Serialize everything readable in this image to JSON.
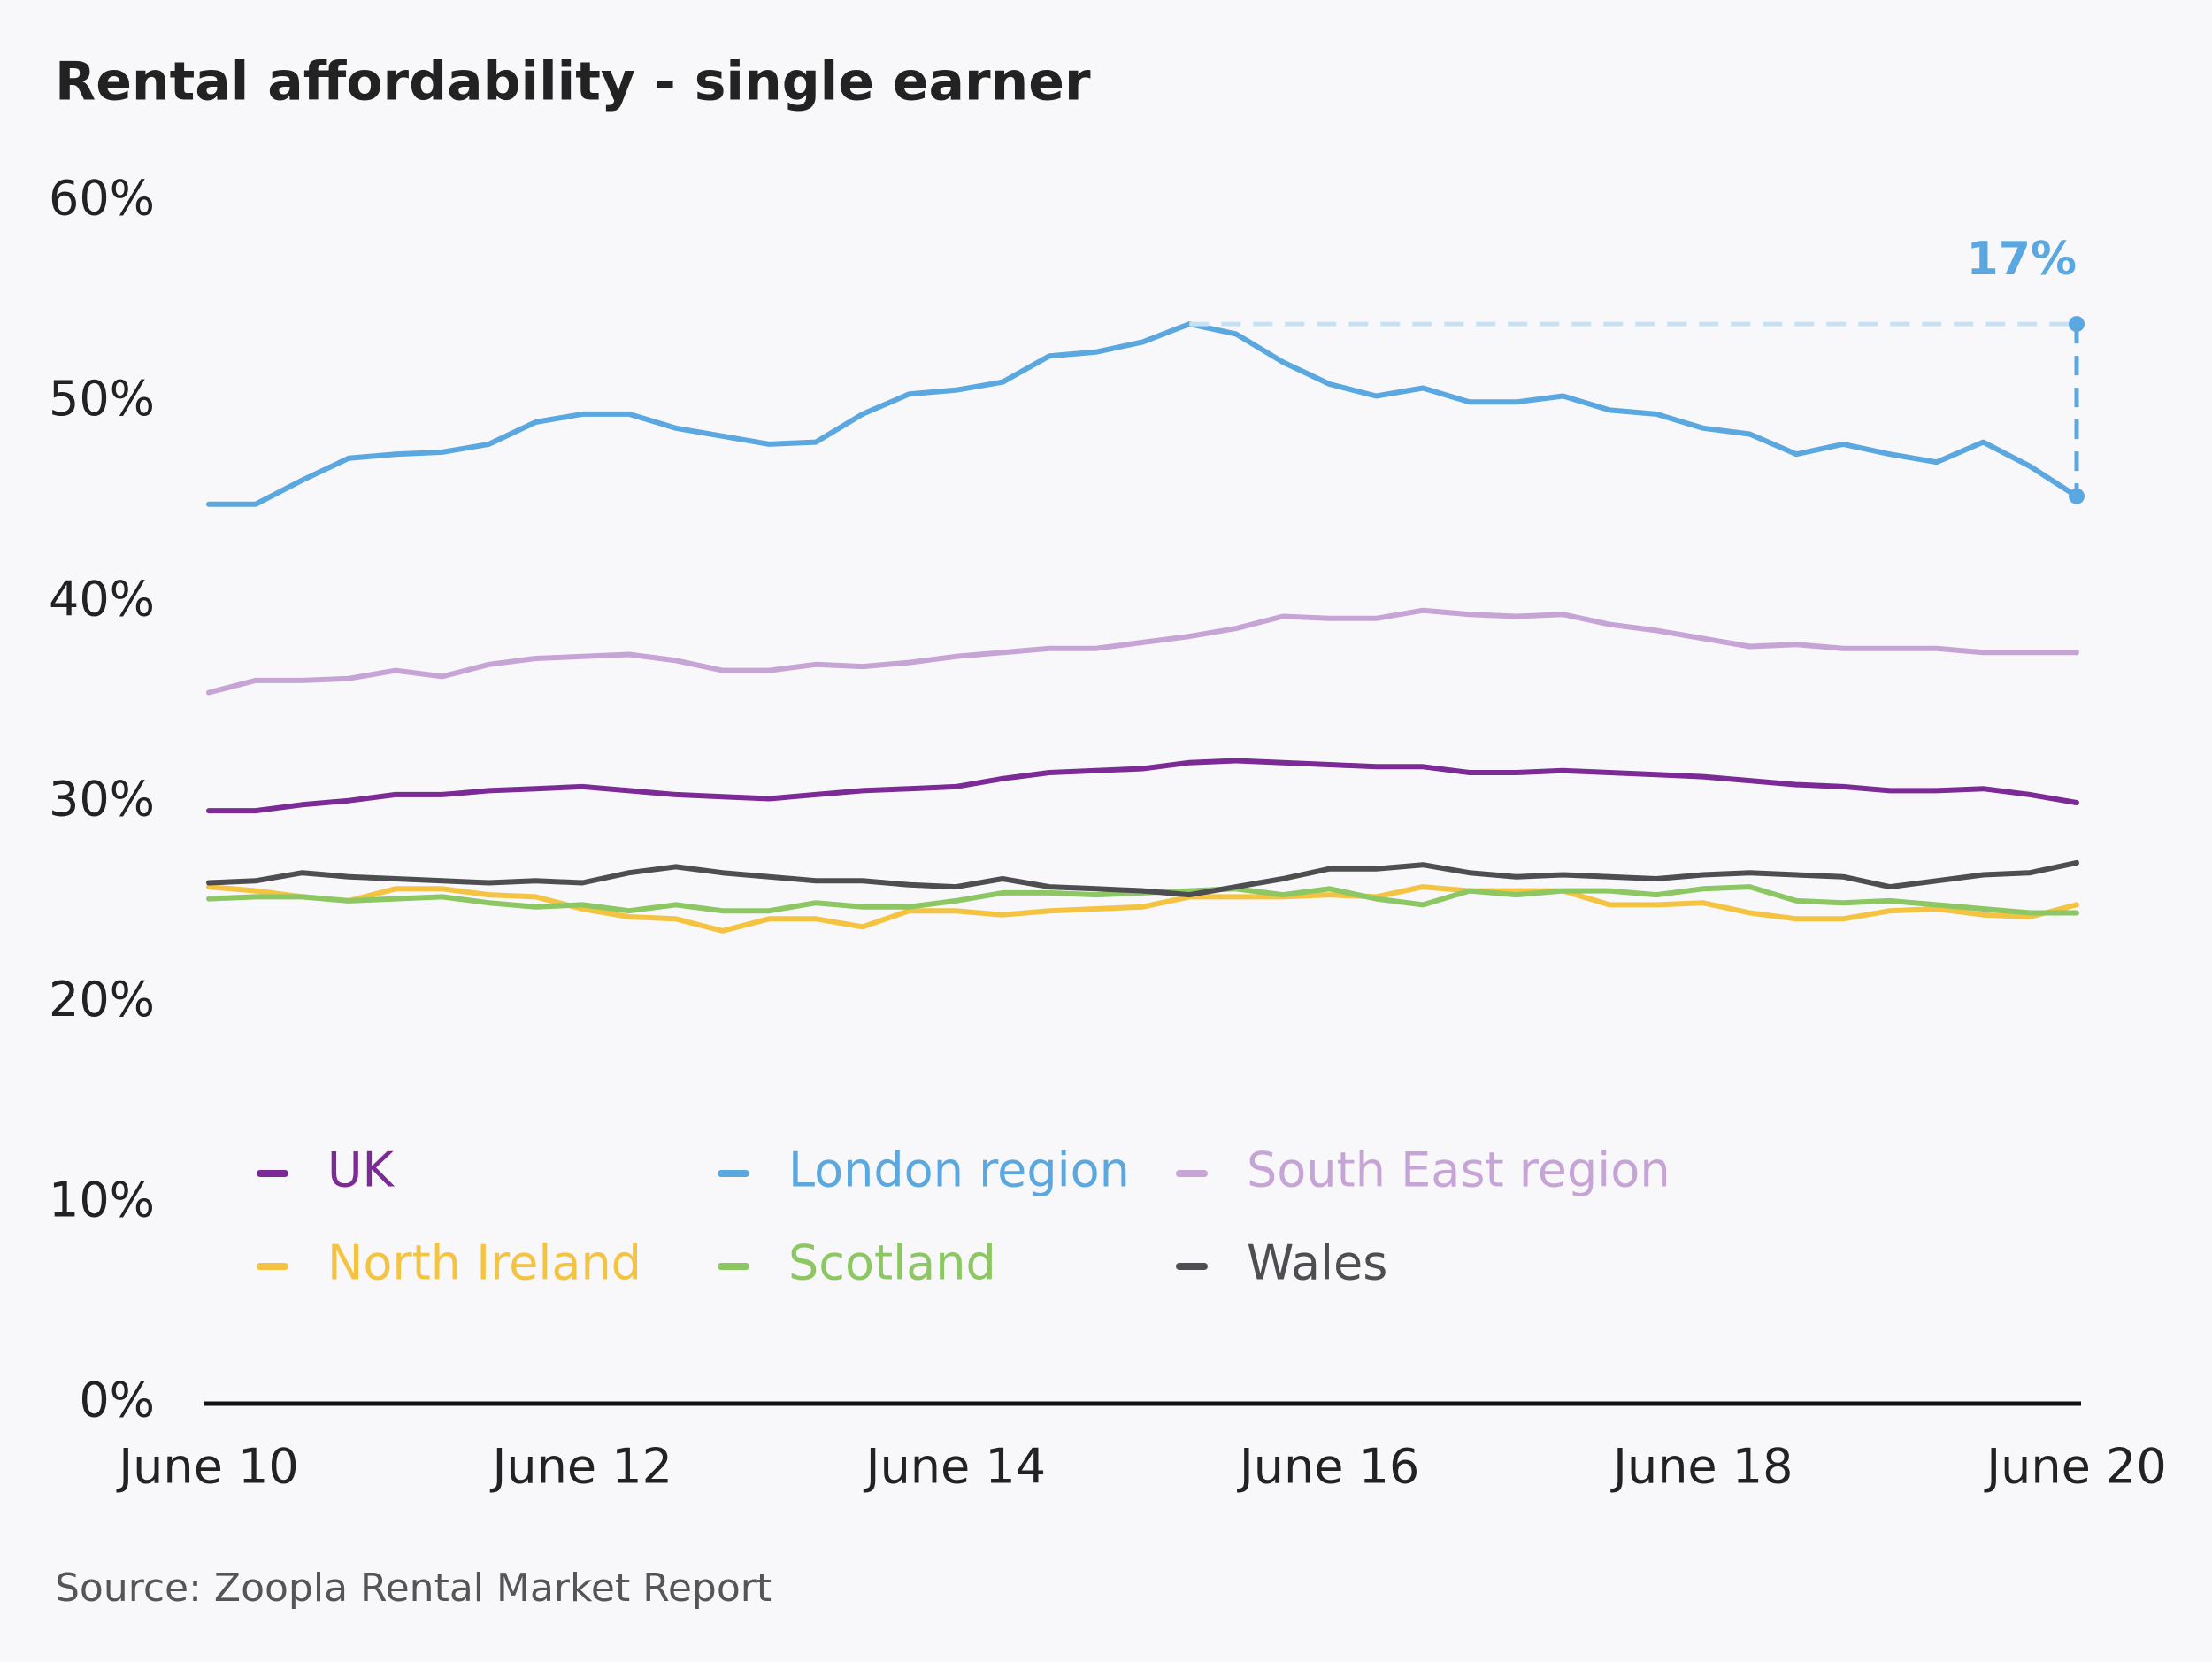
{
  "chart_data": {
    "type": "line",
    "title": "Rental affordability - single earner",
    "source": "Source: Zoopla Rental Market Report",
    "annotation": "17%",
    "categories": [
      "June 10",
      null,
      null,
      null,
      null,
      null,
      null,
      null,
      "June 12",
      null,
      null,
      null,
      null,
      null,
      null,
      null,
      "June 14",
      null,
      null,
      null,
      null,
      null,
      null,
      null,
      "June 16",
      null,
      null,
      null,
      null,
      null,
      null,
      null,
      "June 18",
      null,
      null,
      null,
      null,
      null,
      null,
      null,
      "June 20"
    ],
    "ylim": [
      0,
      60
    ],
    "yticks": [
      {
        "value": 0,
        "label": "0%"
      },
      {
        "value": 10,
        "label": "10%"
      },
      {
        "value": 20,
        "label": "20%"
      },
      {
        "value": 30,
        "label": "30%"
      },
      {
        "value": 40,
        "label": "40%"
      },
      {
        "value": 50,
        "label": "50%"
      },
      {
        "value": 60,
        "label": "60%"
      }
    ],
    "grid": false,
    "series": [
      {
        "name": "UK",
        "color": "#7b2a96",
        "values": [
          29.6,
          29.6,
          29.9,
          30.1,
          30.4,
          30.4,
          30.6,
          30.7,
          30.8,
          30.6,
          30.4,
          30.3,
          30.2,
          30.4,
          30.6,
          30.7,
          30.8,
          31.2,
          31.5,
          31.6,
          31.7,
          32.0,
          32.1,
          32.0,
          31.9,
          31.8,
          31.8,
          31.5,
          31.5,
          31.6,
          31.5,
          31.4,
          31.3,
          31.1,
          30.9,
          30.8,
          30.6,
          30.6,
          30.7,
          30.4,
          30.0
        ]
      },
      {
        "name": "London region",
        "color": "#5ba7df",
        "values": [
          44.9,
          44.9,
          46.1,
          47.2,
          47.4,
          47.5,
          47.9,
          49.0,
          49.4,
          49.4,
          48.7,
          48.3,
          47.9,
          48.0,
          49.4,
          50.4,
          50.6,
          51.0,
          52.3,
          52.5,
          53.0,
          53.9,
          53.4,
          52.0,
          50.9,
          50.3,
          50.7,
          50.0,
          50.0,
          50.3,
          49.6,
          49.4,
          48.7,
          48.4,
          47.4,
          47.9,
          47.4,
          47.0,
          48.0,
          46.8,
          45.3
        ]
      },
      {
        "name": "South East region",
        "color": "#c6a4d6",
        "values": [
          35.5,
          36.1,
          36.1,
          36.2,
          36.6,
          36.3,
          36.9,
          37.2,
          37.3,
          37.4,
          37.1,
          36.6,
          36.6,
          36.9,
          36.8,
          37.0,
          37.3,
          37.5,
          37.7,
          37.7,
          38.0,
          38.3,
          38.7,
          39.3,
          39.2,
          39.2,
          39.6,
          39.4,
          39.3,
          39.4,
          38.9,
          38.6,
          38.2,
          37.8,
          37.9,
          37.7,
          37.7,
          37.7,
          37.5,
          37.5,
          37.5
        ]
      },
      {
        "name": "North Ireland",
        "color": "#f5c342",
        "values": [
          25.8,
          25.6,
          25.3,
          25.1,
          25.7,
          25.7,
          25.4,
          25.3,
          24.7,
          24.3,
          24.2,
          23.6,
          24.2,
          24.2,
          23.8,
          24.6,
          24.6,
          24.4,
          24.6,
          24.7,
          24.8,
          25.3,
          25.3,
          25.3,
          25.4,
          25.3,
          25.8,
          25.6,
          25.6,
          25.6,
          24.9,
          24.9,
          25.0,
          24.5,
          24.2,
          24.2,
          24.6,
          24.7,
          24.4,
          24.3,
          24.9
        ]
      },
      {
        "name": "Scotland",
        "color": "#8cc763",
        "values": [
          25.2,
          25.3,
          25.3,
          25.1,
          25.2,
          25.3,
          25.0,
          24.8,
          24.9,
          24.6,
          24.9,
          24.6,
          24.6,
          25.0,
          24.8,
          24.8,
          25.1,
          25.5,
          25.5,
          25.4,
          25.5,
          25.6,
          25.7,
          25.4,
          25.7,
          25.2,
          24.9,
          25.6,
          25.4,
          25.6,
          25.6,
          25.4,
          25.7,
          25.8,
          25.1,
          25.0,
          25.1,
          24.9,
          24.7,
          24.5,
          24.5
        ]
      },
      {
        "name": "Wales",
        "color": "#4d4d52",
        "values": [
          26.0,
          26.1,
          26.5,
          26.3,
          26.2,
          26.1,
          26.0,
          26.1,
          26.0,
          26.5,
          26.8,
          26.5,
          26.3,
          26.1,
          26.1,
          25.9,
          25.8,
          26.2,
          25.8,
          25.7,
          25.6,
          25.4,
          25.8,
          26.2,
          26.7,
          26.7,
          26.9,
          26.5,
          26.3,
          26.4,
          26.3,
          26.2,
          26.4,
          26.5,
          26.4,
          26.3,
          25.8,
          26.1,
          26.4,
          26.5,
          27.0
        ]
      }
    ]
  }
}
